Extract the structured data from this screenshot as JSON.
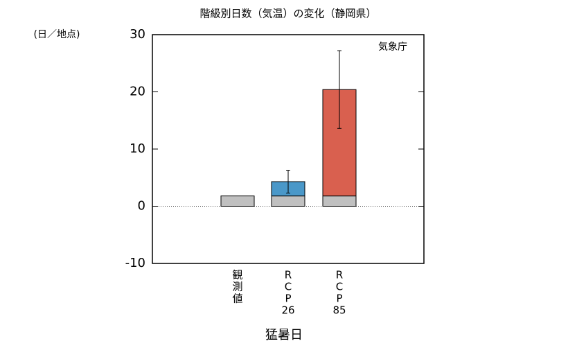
{
  "chart_data": {
    "type": "bar",
    "title": "階級別日数（気温）の変化（静岡県）",
    "y_unit_label": "(日／地点)",
    "annotation": "気象庁",
    "xlabel": "猛暑日",
    "categories": [
      [
        "観",
        "測",
        "値"
      ],
      [
        "R",
        "C",
        "P",
        "26"
      ],
      [
        "R",
        "C",
        "P",
        "85"
      ]
    ],
    "series": [
      {
        "color": "#c0c0c0",
        "values": [
          1.8,
          1.8,
          1.8
        ]
      },
      {
        "colors": [
          null,
          "#4a98c9",
          "#d9604f"
        ],
        "values": [
          null,
          2.5,
          18.6
        ],
        "errors": [
          null,
          2.0,
          6.8
        ]
      }
    ],
    "ylim": [
      -10,
      30
    ],
    "yticks": [
      -10,
      0,
      10,
      20,
      30
    ],
    "zero_line": true
  }
}
